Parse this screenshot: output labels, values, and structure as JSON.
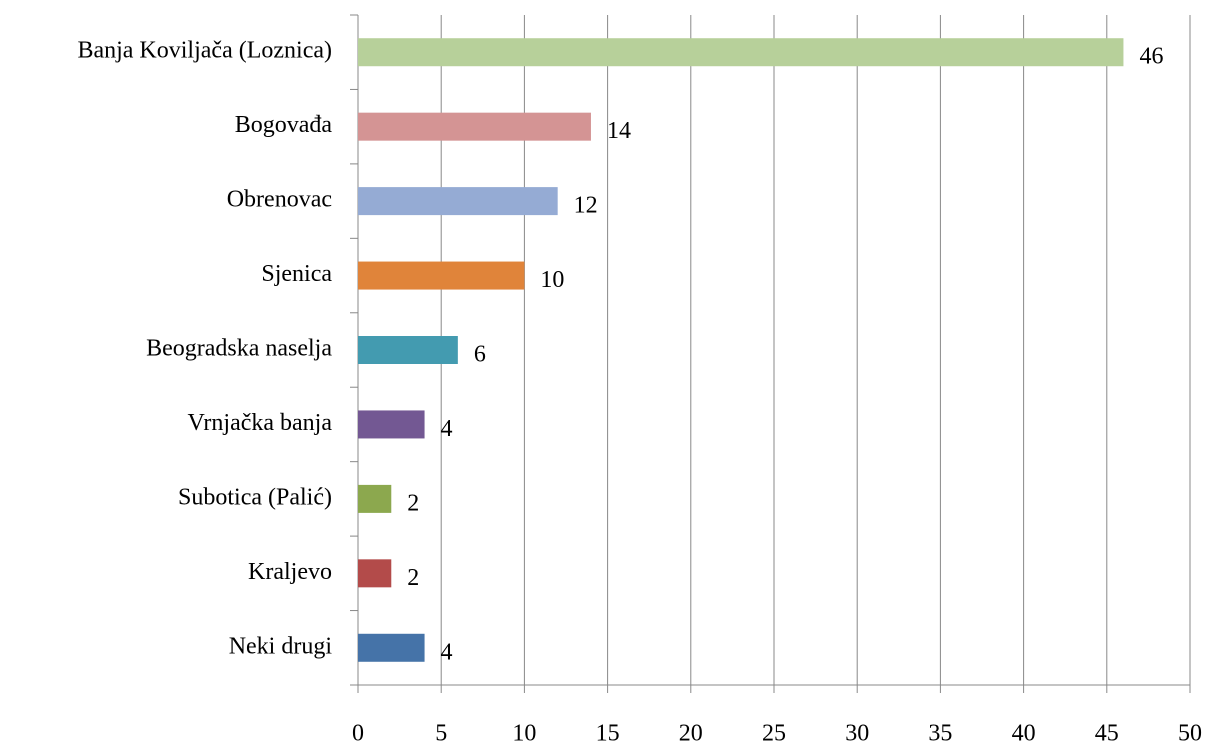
{
  "chart_data": {
    "type": "barh",
    "categories": [
      "Banja Koviljača (Loznica)",
      "Bogovađa",
      "Obrenovac",
      "Sjenica",
      "Beogradska naselja",
      "Vrnjačka banja",
      "Subotica (Palić)",
      "Kraljevo",
      "Neki drugi"
    ],
    "values": [
      46,
      14,
      12,
      10,
      6,
      4,
      2,
      2,
      4
    ],
    "colors": [
      "#b7d09a",
      "#d49494",
      "#95abd4",
      "#e0843a",
      "#439bb0",
      "#735893",
      "#8ca84e",
      "#b34b4a",
      "#4573a8"
    ],
    "xlim": [
      0,
      50
    ],
    "xticks": [
      0,
      5,
      10,
      15,
      20,
      25,
      30,
      35,
      40,
      45,
      50
    ],
    "grid": true
  }
}
